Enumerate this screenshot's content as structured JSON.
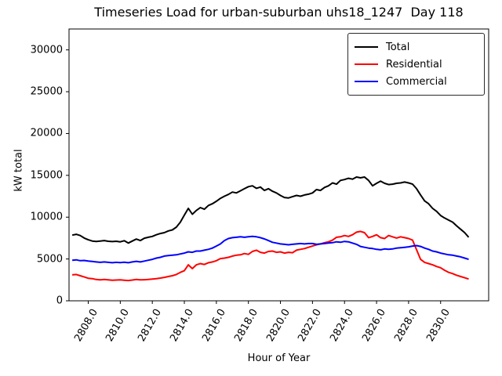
{
  "title": "Timeseries Load for urban-suburban uhs18_1247  Day 118",
  "axes": {
    "xlabel": "Hour of Year",
    "ylabel": "kW total"
  },
  "legend": {
    "position": "upper right",
    "entries": [
      {
        "label": "Total",
        "color": "#000000"
      },
      {
        "label": "Residential",
        "color": "#ff0000"
      },
      {
        "label": "Commercial",
        "color": "#0000ff"
      }
    ]
  },
  "chart_data": {
    "type": "line",
    "title": "Timeseries Load for urban-suburban uhs18_1247  Day 118",
    "xlabel": "Hour of Year",
    "ylabel": "kW total",
    "xlim": [
      2806.8,
      2833.0
    ],
    "ylim": [
      0,
      32500
    ],
    "grid": false,
    "xtick_labels": [
      "2808.0",
      "2810.0",
      "2812.0",
      "2814.0",
      "2816.0",
      "2818.0",
      "2820.0",
      "2822.0",
      "2824.0",
      "2826.0",
      "2828.0",
      "2830.0"
    ],
    "xtick_values": [
      2808,
      2810,
      2812,
      2814,
      2816,
      2818,
      2820,
      2822,
      2824,
      2826,
      2828,
      2830
    ],
    "ytick_labels": [
      "0",
      "5000",
      "10000",
      "15000",
      "20000",
      "25000",
      "30000"
    ],
    "ytick_values": [
      0,
      5000,
      10000,
      15000,
      20000,
      25000,
      30000
    ],
    "x_start": 2807.0,
    "x_step": 0.25,
    "x": [
      2807.0,
      2807.25,
      2807.5,
      2807.75,
      2808.0,
      2808.25,
      2808.5,
      2808.75,
      2809.0,
      2809.25,
      2809.5,
      2809.75,
      2810.0,
      2810.25,
      2810.5,
      2810.75,
      2811.0,
      2811.25,
      2811.5,
      2811.75,
      2812.0,
      2812.25,
      2812.5,
      2812.75,
      2813.0,
      2813.25,
      2813.5,
      2813.75,
      2814.0,
      2814.25,
      2814.5,
      2814.75,
      2815.0,
      2815.25,
      2815.5,
      2815.75,
      2816.0,
      2816.25,
      2816.5,
      2816.75,
      2817.0,
      2817.25,
      2817.5,
      2817.75,
      2818.0,
      2818.25,
      2818.5,
      2818.75,
      2819.0,
      2819.25,
      2819.5,
      2819.75,
      2820.0,
      2820.25,
      2820.5,
      2820.75,
      2821.0,
      2821.25,
      2821.5,
      2821.75,
      2822.0,
      2822.25,
      2822.5,
      2822.75,
      2823.0,
      2823.25,
      2823.5,
      2823.75,
      2824.0,
      2824.25,
      2824.5,
      2824.75,
      2825.0,
      2825.25,
      2825.5,
      2825.75,
      2826.0,
      2826.25,
      2826.5,
      2826.75,
      2827.0,
      2827.25,
      2827.5,
      2827.75,
      2828.0,
      2828.25,
      2828.5,
      2828.75,
      2829.0,
      2829.25,
      2829.5,
      2829.75,
      2830.0,
      2830.25,
      2830.5,
      2830.75,
      2831.0,
      2831.25,
      2831.5,
      2831.75
    ],
    "series": [
      {
        "name": "Total",
        "color": "#000000",
        "values": [
          7850,
          7950,
          7800,
          7500,
          7300,
          7150,
          7100,
          7150,
          7200,
          7120,
          7080,
          7120,
          7050,
          7180,
          6900,
          7150,
          7380,
          7200,
          7480,
          7600,
          7700,
          7900,
          8050,
          8150,
          8350,
          8480,
          8800,
          9400,
          10250,
          11050,
          10350,
          10800,
          11150,
          10950,
          11400,
          11600,
          11900,
          12250,
          12500,
          12720,
          13000,
          12900,
          13150,
          13400,
          13650,
          13750,
          13450,
          13600,
          13200,
          13400,
          13100,
          12900,
          12600,
          12350,
          12300,
          12450,
          12600,
          12500,
          12650,
          12750,
          12900,
          13300,
          13200,
          13550,
          13750,
          14100,
          13950,
          14400,
          14500,
          14650,
          14550,
          14800,
          14700,
          14800,
          14400,
          13750,
          14050,
          14300,
          14050,
          13900,
          13950,
          14050,
          14100,
          14200,
          14100,
          13950,
          13400,
          12650,
          11950,
          11600,
          11050,
          10700,
          10200,
          9900,
          9650,
          9400,
          8950,
          8550,
          8150,
          7600
        ]
      },
      {
        "name": "Residential",
        "color": "#ff0000",
        "values": [
          3100,
          3150,
          3000,
          2850,
          2700,
          2650,
          2550,
          2500,
          2560,
          2500,
          2450,
          2480,
          2500,
          2450,
          2430,
          2480,
          2560,
          2500,
          2520,
          2550,
          2600,
          2650,
          2720,
          2800,
          2900,
          3000,
          3150,
          3400,
          3600,
          4300,
          3850,
          4300,
          4450,
          4350,
          4550,
          4650,
          4800,
          5050,
          5100,
          5200,
          5350,
          5450,
          5500,
          5650,
          5550,
          5900,
          6050,
          5800,
          5700,
          5900,
          5950,
          5800,
          5850,
          5700,
          5800,
          5750,
          6050,
          6150,
          6250,
          6400,
          6550,
          6700,
          6800,
          6950,
          7050,
          7250,
          7600,
          7650,
          7800,
          7700,
          7900,
          8200,
          8300,
          8150,
          7550,
          7700,
          7900,
          7550,
          7450,
          7800,
          7650,
          7500,
          7650,
          7550,
          7450,
          7250,
          6100,
          4950,
          4600,
          4450,
          4300,
          4100,
          3950,
          3650,
          3400,
          3250,
          3050,
          2900,
          2750,
          2600
        ]
      },
      {
        "name": "Commercial",
        "color": "#0000ff",
        "values": [
          4850,
          4900,
          4800,
          4820,
          4750,
          4700,
          4650,
          4600,
          4650,
          4600,
          4550,
          4600,
          4560,
          4620,
          4550,
          4650,
          4720,
          4650,
          4750,
          4850,
          4950,
          5100,
          5200,
          5350,
          5400,
          5450,
          5500,
          5600,
          5700,
          5850,
          5800,
          5950,
          5950,
          6050,
          6150,
          6300,
          6550,
          6800,
          7200,
          7450,
          7550,
          7600,
          7650,
          7600,
          7650,
          7700,
          7650,
          7550,
          7400,
          7200,
          7000,
          6900,
          6800,
          6750,
          6700,
          6750,
          6800,
          6850,
          6800,
          6850,
          6850,
          6750,
          6800,
          6850,
          6900,
          6950,
          7050,
          7000,
          7100,
          7050,
          6900,
          6750,
          6500,
          6400,
          6300,
          6250,
          6150,
          6100,
          6200,
          6150,
          6200,
          6300,
          6350,
          6400,
          6450,
          6550,
          6600,
          6500,
          6300,
          6150,
          5950,
          5850,
          5700,
          5600,
          5500,
          5450,
          5350,
          5250,
          5100,
          4950
        ]
      }
    ]
  },
  "geometry_note": "axes box in px: left 88, top 37, right 623, bottom 384"
}
